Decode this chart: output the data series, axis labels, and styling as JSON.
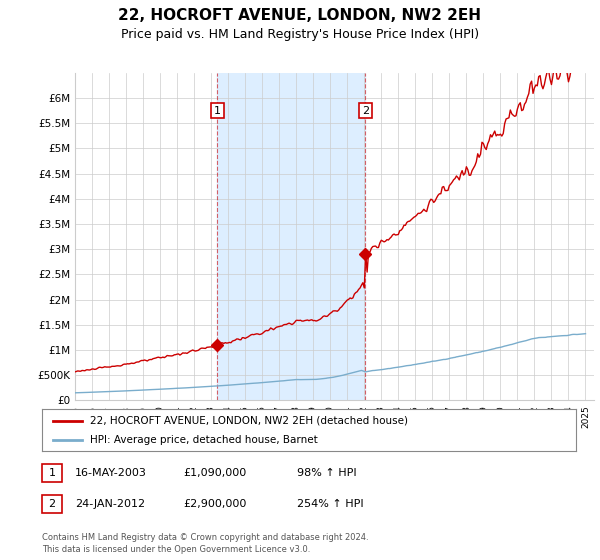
{
  "title": "22, HOCROFT AVENUE, LONDON, NW2 2EH",
  "subtitle": "Price paid vs. HM Land Registry's House Price Index (HPI)",
  "title_fontsize": 11,
  "subtitle_fontsize": 9,
  "ylim": [
    0,
    6500000
  ],
  "yticks": [
    0,
    500000,
    1000000,
    1500000,
    2000000,
    2500000,
    3000000,
    3500000,
    4000000,
    4500000,
    5000000,
    5500000,
    6000000
  ],
  "ytick_labels": [
    "£0",
    "£500K",
    "£1M",
    "£1.5M",
    "£2M",
    "£2.5M",
    "£3M",
    "£3.5M",
    "£4M",
    "£4.5M",
    "£5M",
    "£5.5M",
    "£6M"
  ],
  "xlim_start": 1995.0,
  "xlim_end": 2025.5,
  "sale1_x": 2003.37,
  "sale1_y": 1090000,
  "sale1_label": "16-MAY-2003",
  "sale1_price": "£1,090,000",
  "sale1_hpi": "98% ↑ HPI",
  "sale2_x": 2012.07,
  "sale2_y": 2900000,
  "sale2_label": "24-JAN-2012",
  "sale2_price": "£2,900,000",
  "sale2_hpi": "254% ↑ HPI",
  "red_color": "#cc0000",
  "blue_color": "#7aadcc",
  "shade_color": "#ddeeff",
  "grid_color": "#cccccc",
  "legend_line1": "22, HOCROFT AVENUE, LONDON, NW2 2EH (detached house)",
  "legend_line2": "HPI: Average price, detached house, Barnet",
  "footer1": "Contains HM Land Registry data © Crown copyright and database right 2024.",
  "footer2": "This data is licensed under the Open Government Licence v3.0.",
  "bg_color": "#ffffff"
}
